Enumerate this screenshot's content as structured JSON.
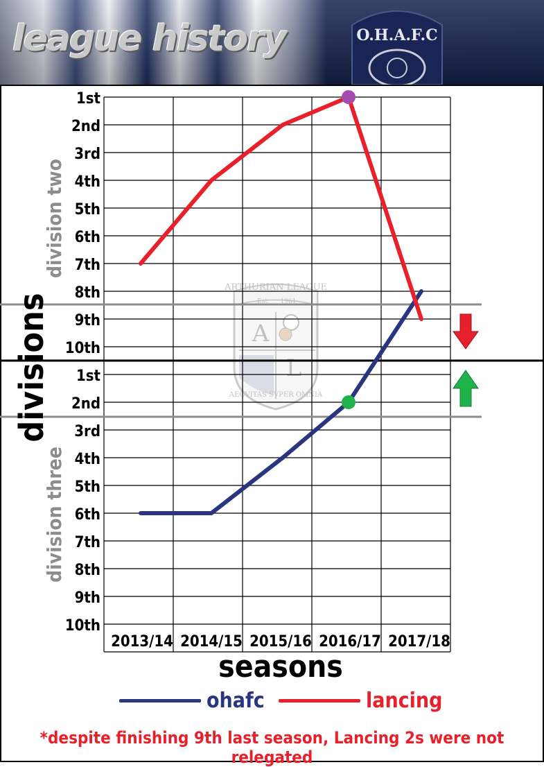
{
  "header": {
    "title": "league history",
    "crest_text": "O.H.A.F.C"
  },
  "footnote": "*despite finishing 9th last season, Lancing 2s were not relegated",
  "colors": {
    "ohafc": "#2a3580",
    "lancing": "#e8202b",
    "division_label": "#8c8c8c",
    "promotion_marker": "#22b24c",
    "title_marker": "#a44bb0"
  },
  "icons": {
    "relegation": "red-down-arrow-icon",
    "promotion": "green-up-arrow-icon",
    "watermark": "arthurian-league-crest-icon"
  },
  "watermark": {
    "top": "ARTHURIAN LEAGUE",
    "est": "Est.",
    "year": "1961",
    "letter_a": "A",
    "letter_l": "L",
    "bottom": "AEQVITAS SVPER OMNIA"
  },
  "chart_data": {
    "type": "line",
    "title": "",
    "xlabel": "seasons",
    "ylabel": "divisions",
    "categories": [
      "2013/14",
      "2014/15",
      "2015/16",
      "2016/17",
      "2017/18"
    ],
    "y_tick_labels": [
      "1st",
      "2nd",
      "3rd",
      "4th",
      "5th",
      "6th",
      "7th",
      "8th",
      "9th",
      "10th",
      "1st",
      "2nd",
      "3rd",
      "4th",
      "5th",
      "6th",
      "7th",
      "8th",
      "9th",
      "10th"
    ],
    "y_scale_note": "overall ranking: division two positions 1-10, then division three positions 1-10 (11-20); lower is better",
    "ylim": [
      1,
      20
    ],
    "divisions": [
      {
        "name": "division two",
        "from": 1,
        "to": 10
      },
      {
        "name": "division three",
        "from": 11,
        "to": 20
      }
    ],
    "relegation_zone": [
      9,
      10
    ],
    "promotion_zone": [
      11,
      12
    ],
    "grid": true,
    "legend_position": "bottom",
    "series": [
      {
        "name": "ohafc",
        "values": [
          16,
          16,
          14,
          12,
          8
        ]
      },
      {
        "name": "lancing",
        "values": [
          7,
          4,
          2,
          1,
          9
        ]
      }
    ],
    "markers": [
      {
        "series": "lancing",
        "category": "2016/17",
        "y": 1,
        "color": "#a44bb0"
      },
      {
        "series": "ohafc",
        "category": "2016/17",
        "y": 12,
        "color": "#22b24c"
      }
    ]
  }
}
